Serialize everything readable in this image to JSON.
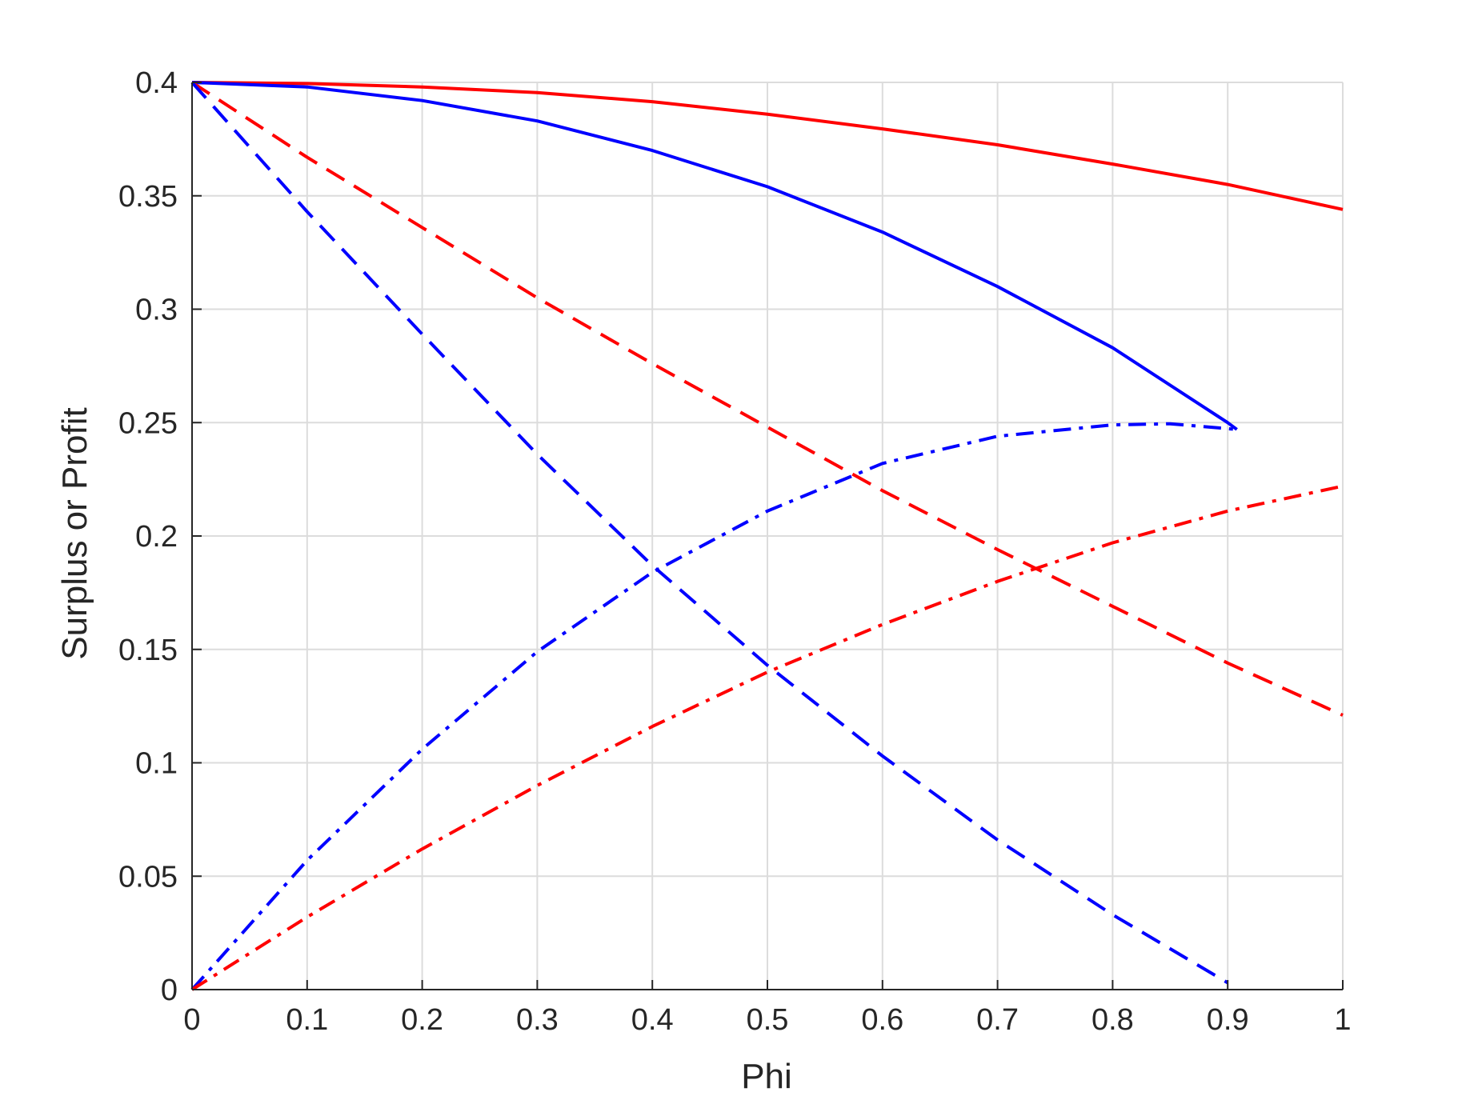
{
  "chart_data": {
    "type": "line",
    "title": "",
    "xlabel": "Phi",
    "ylabel": "Surplus or Profit",
    "xlim": [
      0,
      1
    ],
    "ylim": [
      0,
      0.4
    ],
    "xticks": [
      0,
      0.1,
      0.2,
      0.3,
      0.4,
      0.5,
      0.6,
      0.7,
      0.8,
      0.9,
      1
    ],
    "xtick_labels": [
      "0",
      "0.1",
      "0.2",
      "0.3",
      "0.4",
      "0.5",
      "0.6",
      "0.7",
      "0.8",
      "0.9",
      "1"
    ],
    "yticks": [
      0,
      0.05,
      0.1,
      0.15,
      0.2,
      0.25,
      0.3,
      0.35,
      0.4
    ],
    "ytick_labels": [
      "0",
      "0.05",
      "0.1",
      "0.15",
      "0.2",
      "0.25",
      "0.3",
      "0.35",
      "0.4"
    ],
    "grid": true,
    "legend": "none",
    "series": [
      {
        "color": "#ff0000",
        "style": "solid",
        "points": [
          [
            0,
            0.4
          ],
          [
            0.1,
            0.3995
          ],
          [
            0.2,
            0.398
          ],
          [
            0.3,
            0.3955
          ],
          [
            0.4,
            0.3915
          ],
          [
            0.5,
            0.386
          ],
          [
            0.6,
            0.3795
          ],
          [
            0.7,
            0.3725
          ],
          [
            0.8,
            0.364
          ],
          [
            0.9,
            0.355
          ],
          [
            1.0,
            0.344
          ]
        ]
      },
      {
        "color": "#0000ff",
        "style": "solid",
        "points": [
          [
            0,
            0.4
          ],
          [
            0.1,
            0.398
          ],
          [
            0.2,
            0.392
          ],
          [
            0.3,
            0.383
          ],
          [
            0.4,
            0.37
          ],
          [
            0.5,
            0.354
          ],
          [
            0.6,
            0.334
          ],
          [
            0.7,
            0.31
          ],
          [
            0.8,
            0.283
          ],
          [
            0.9,
            0.25
          ],
          [
            0.908,
            0.247
          ]
        ]
      },
      {
        "color": "#ff0000",
        "style": "dashed",
        "points": [
          [
            0,
            0.4
          ],
          [
            0.1,
            0.367
          ],
          [
            0.2,
            0.336
          ],
          [
            0.3,
            0.305
          ],
          [
            0.4,
            0.276
          ],
          [
            0.5,
            0.248
          ],
          [
            0.6,
            0.22
          ],
          [
            0.7,
            0.194
          ],
          [
            0.8,
            0.169
          ],
          [
            0.9,
            0.144
          ],
          [
            1.0,
            0.121
          ]
        ]
      },
      {
        "color": "#0000ff",
        "style": "dashed",
        "points": [
          [
            0,
            0.4
          ],
          [
            0.1,
            0.343
          ],
          [
            0.2,
            0.289
          ],
          [
            0.3,
            0.236
          ],
          [
            0.4,
            0.187
          ],
          [
            0.5,
            0.143
          ],
          [
            0.6,
            0.103
          ],
          [
            0.7,
            0.066
          ],
          [
            0.8,
            0.033
          ],
          [
            0.9,
            0.003
          ]
        ]
      },
      {
        "color": "#0000ff",
        "style": "dashdot",
        "points": [
          [
            0,
            0
          ],
          [
            0.1,
            0.057
          ],
          [
            0.2,
            0.106
          ],
          [
            0.3,
            0.149
          ],
          [
            0.4,
            0.184
          ],
          [
            0.5,
            0.211
          ],
          [
            0.6,
            0.232
          ],
          [
            0.7,
            0.244
          ],
          [
            0.8,
            0.249
          ],
          [
            0.85,
            0.2495
          ],
          [
            0.908,
            0.247
          ]
        ]
      },
      {
        "color": "#ff0000",
        "style": "dashdot",
        "points": [
          [
            0,
            0
          ],
          [
            0.1,
            0.032
          ],
          [
            0.2,
            0.062
          ],
          [
            0.3,
            0.09
          ],
          [
            0.4,
            0.116
          ],
          [
            0.5,
            0.14
          ],
          [
            0.6,
            0.161
          ],
          [
            0.7,
            0.18
          ],
          [
            0.8,
            0.197
          ],
          [
            0.9,
            0.211
          ],
          [
            1.0,
            0.222
          ]
        ]
      }
    ]
  }
}
